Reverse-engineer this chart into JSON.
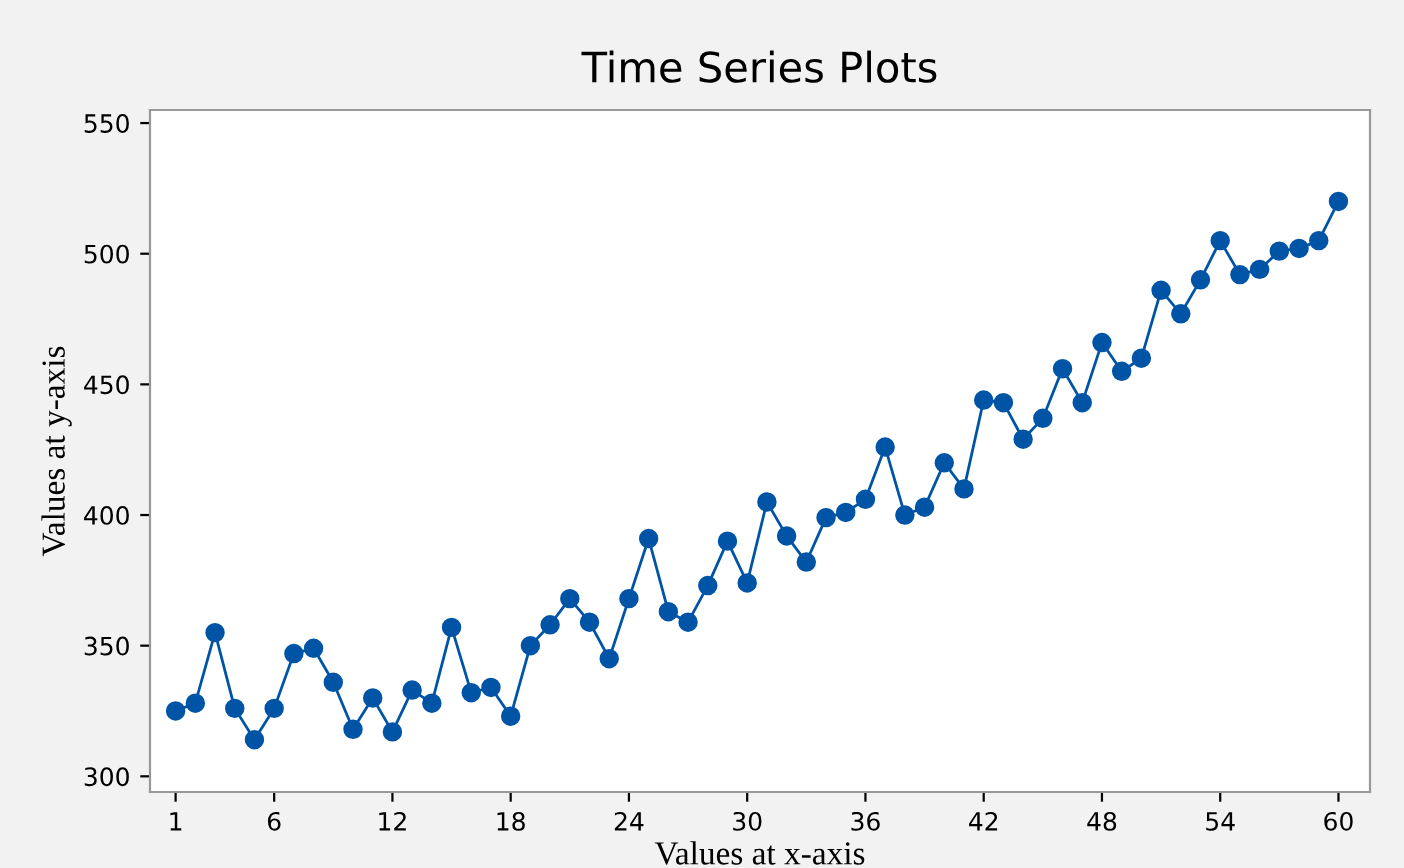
{
  "chart_data": {
    "type": "line",
    "title": "Time Series Plots",
    "xlabel": "Values at x-axis",
    "ylabel": "Values at y-axis",
    "x": [
      1,
      2,
      3,
      4,
      5,
      6,
      7,
      8,
      9,
      10,
      11,
      12,
      13,
      14,
      15,
      16,
      17,
      18,
      19,
      20,
      21,
      22,
      23,
      24,
      25,
      26,
      27,
      28,
      29,
      30,
      31,
      32,
      33,
      34,
      35,
      36,
      37,
      38,
      39,
      40,
      41,
      42,
      43,
      44,
      45,
      46,
      47,
      48,
      49,
      50,
      51,
      52,
      53,
      54,
      55,
      56,
      57,
      58,
      59,
      60
    ],
    "series": [
      {
        "color": "#0054a6",
        "values": [
          325,
          328,
          355,
          326,
          314,
          326,
          347,
          349,
          336,
          318,
          330,
          317,
          333,
          328,
          357,
          332,
          334,
          323,
          350,
          358,
          368,
          359,
          345,
          368,
          391,
          363,
          359,
          373,
          390,
          374,
          405,
          392,
          382,
          399,
          401,
          406,
          426,
          400,
          403,
          420,
          410,
          444,
          443,
          429,
          437,
          456,
          443,
          466,
          455,
          460,
          486,
          477,
          490,
          505,
          492,
          494,
          501,
          502,
          505,
          520
        ]
      }
    ],
    "xlim": [
      -0.3,
      61.6
    ],
    "ylim": [
      294,
      555
    ],
    "xticks": [
      1,
      6,
      12,
      18,
      24,
      30,
      36,
      42,
      48,
      54,
      60
    ],
    "yticks": [
      300,
      350,
      400,
      450,
      500,
      550
    ],
    "marker": "circle",
    "line_style": "solid",
    "grid": false,
    "legend": false
  }
}
